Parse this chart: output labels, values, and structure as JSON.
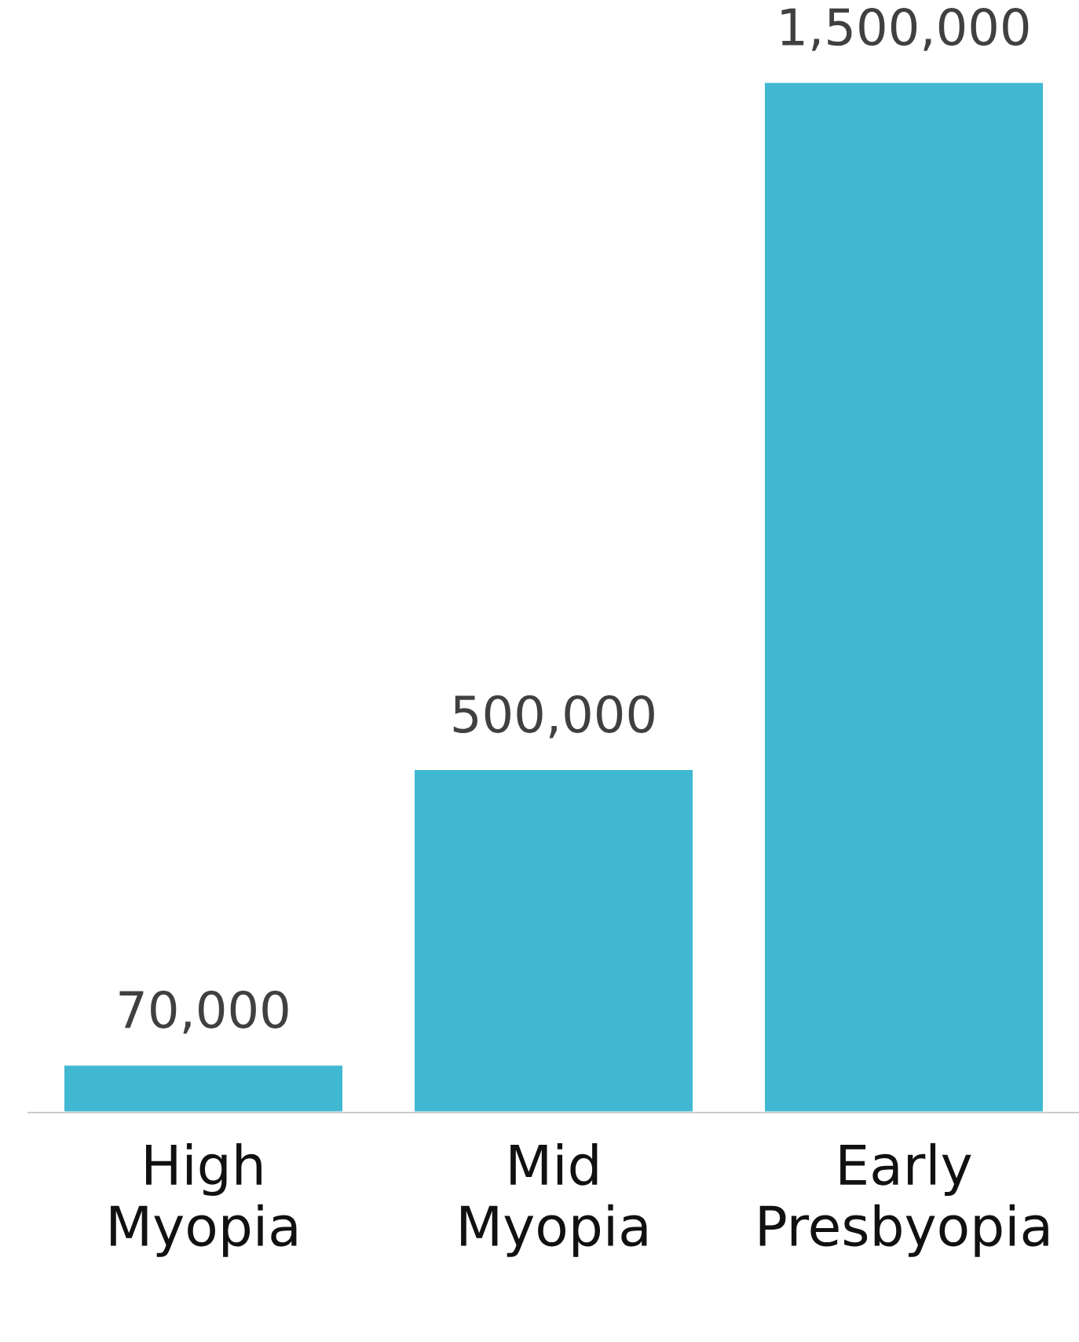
{
  "chart_data": {
    "type": "bar",
    "categories": [
      "High\nMyopia",
      "Mid\nMyopia",
      "Early\nPresbyopia"
    ],
    "values": [
      70000,
      500000,
      1500000
    ],
    "value_labels": [
      "70,000",
      "500,000",
      "1,500,000"
    ],
    "color": "#41b8d2",
    "grid": false,
    "legend": false
  }
}
